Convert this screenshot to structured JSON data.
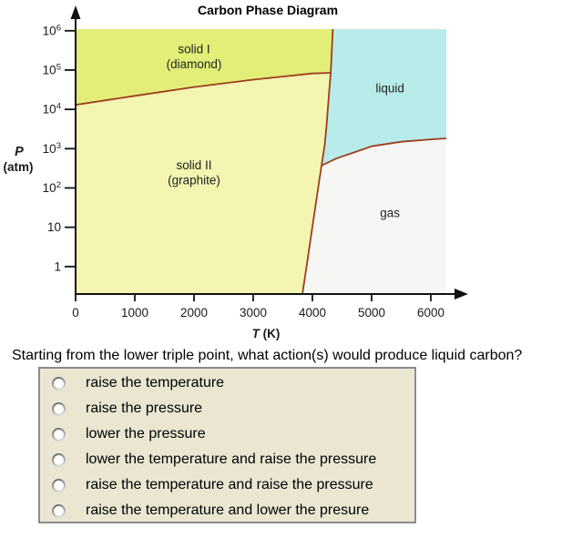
{
  "title": "Carbon Phase Diagram",
  "question": "Starting from the lower triple point, what action(s) would produce liquid carbon?",
  "options": [
    "raise the temperature",
    "raise the pressure",
    "lower the pressure",
    "lower the temperature and raise the pressure",
    "raise the temperature and raise the pressure",
    "raise the temperature and lower the presure"
  ],
  "chart_data": {
    "type": "area",
    "title": "Carbon Phase Diagram",
    "xlabel": "T (K)",
    "ylabel": "P (atm)",
    "grid": false,
    "x_axis": {
      "label_italic": "T",
      "label_rest": " (K)",
      "lim": [
        0,
        6262
      ],
      "ticks": [
        {
          "T": 0,
          "label": "0"
        },
        {
          "T": 1000,
          "label": "1000"
        },
        {
          "T": 2000,
          "label": "2000"
        },
        {
          "T": 3000,
          "label": "3000"
        },
        {
          "T": 4000,
          "label": "4000"
        },
        {
          "T": 5000,
          "label": "5000"
        },
        {
          "T": 6000,
          "label": "6000"
        }
      ]
    },
    "y_axis": {
      "label_italic": "P",
      "label_rest": "(atm)",
      "scale": "log",
      "unit": "atm",
      "lim": [
        0.2,
        1100000
      ],
      "ticks": [
        {
          "P": 1000000,
          "base": "10",
          "exp": "6"
        },
        {
          "P": 100000,
          "base": "10",
          "exp": "5"
        },
        {
          "P": 10000,
          "base": "10",
          "exp": "4"
        },
        {
          "P": 1000,
          "base": "10",
          "exp": "3"
        },
        {
          "P": 100,
          "base": "10",
          "exp": "2"
        },
        {
          "P": 10,
          "base": "10",
          "exp": ""
        },
        {
          "P": 1,
          "base": "1",
          "exp": ""
        }
      ]
    },
    "regions": [
      {
        "id": "solid1",
        "label_lines": [
          "solid I",
          "(diamond)"
        ],
        "label_T": 2000,
        "label_P": 270000,
        "color": "#e3ee78"
      },
      {
        "id": "solid2",
        "label_lines": [
          "solid II",
          "(graphite)"
        ],
        "label_T": 2000,
        "label_P": 300,
        "color": "#f3f5b1"
      },
      {
        "id": "liquid",
        "label_lines": [
          "liquid"
        ],
        "label_T": 5310,
        "label_P": 27000,
        "color": "#b8ecea"
      },
      {
        "id": "gas",
        "label_lines": [
          "gas"
        ],
        "label_T": 5310,
        "label_P": 18,
        "color": "#f6f6f4"
      }
    ],
    "triple_points": [
      {
        "name": "upper (solid I / solid II / liquid)",
        "T_K": 4310,
        "P_atm": 85000
      },
      {
        "name": "lower (solid II / liquid / gas)",
        "T_K": 4150,
        "P_atm": 370
      }
    ],
    "boundaries": {
      "solid1_solid2": [
        [
          0,
          13000
        ],
        [
          1000,
          22000
        ],
        [
          2000,
          37000
        ],
        [
          3000,
          57000
        ],
        [
          4000,
          82000
        ],
        [
          4310,
          85000
        ]
      ],
      "melting_upper": [
        [
          4345,
          1100000
        ],
        [
          4333,
          450000
        ],
        [
          4322,
          200000
        ],
        [
          4310,
          85000
        ]
      ],
      "melting_lower": [
        [
          4310,
          85000
        ],
        [
          4285,
          30000
        ],
        [
          4260,
          10000
        ],
        [
          4235,
          3400
        ],
        [
          4205,
          1150
        ],
        [
          4154,
          370
        ]
      ],
      "sublimation": [
        [
          4154,
          370
        ],
        [
          4073,
          56
        ],
        [
          3992,
          8.7
        ],
        [
          3912,
          1.3
        ],
        [
          3831,
          0.2
        ]
      ],
      "vaporization": [
        [
          4154,
          370
        ],
        [
          4400,
          560
        ],
        [
          4700,
          800
        ],
        [
          5000,
          1150
        ],
        [
          5500,
          1500
        ],
        [
          6000,
          1720
        ],
        [
          6262,
          1830
        ]
      ]
    },
    "colors": {
      "boundary": "#9e3d20",
      "axis": "#111111",
      "text": "#1a1a1a"
    }
  }
}
